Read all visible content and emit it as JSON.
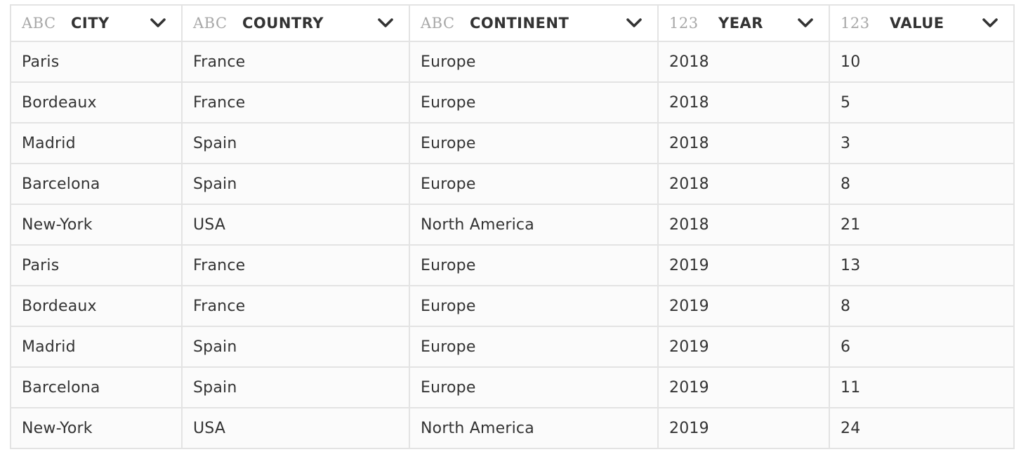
{
  "table": {
    "columns": [
      {
        "type": "ABC",
        "name": "CITY"
      },
      {
        "type": "ABC",
        "name": "COUNTRY"
      },
      {
        "type": "ABC",
        "name": "CONTINENT"
      },
      {
        "type": "123",
        "name": "YEAR"
      },
      {
        "type": "123",
        "name": "VALUE"
      }
    ],
    "rows": [
      [
        "Paris",
        "France",
        "Europe",
        "2018",
        "10"
      ],
      [
        "Bordeaux",
        "France",
        "Europe",
        "2018",
        "5"
      ],
      [
        "Madrid",
        "Spain",
        "Europe",
        "2018",
        "3"
      ],
      [
        "Barcelona",
        "Spain",
        "Europe",
        "2018",
        "8"
      ],
      [
        "New-York",
        "USA",
        "North America",
        "2018",
        "21"
      ],
      [
        "Paris",
        "France",
        "Europe",
        "2019",
        "13"
      ],
      [
        "Bordeaux",
        "France",
        "Europe",
        "2019",
        "8"
      ],
      [
        "Madrid",
        "Spain",
        "Europe",
        "2019",
        "6"
      ],
      [
        "Barcelona",
        "Spain",
        "Europe",
        "2019",
        "11"
      ],
      [
        "New-York",
        "USA",
        "North America",
        "2019",
        "24"
      ]
    ],
    "header_icon": "chevron-down-icon"
  },
  "colors": {
    "border": "#e3e3e3",
    "text": "#333333",
    "type_tag": "#a7a7a7",
    "cell_bg": "#fbfbfb"
  }
}
